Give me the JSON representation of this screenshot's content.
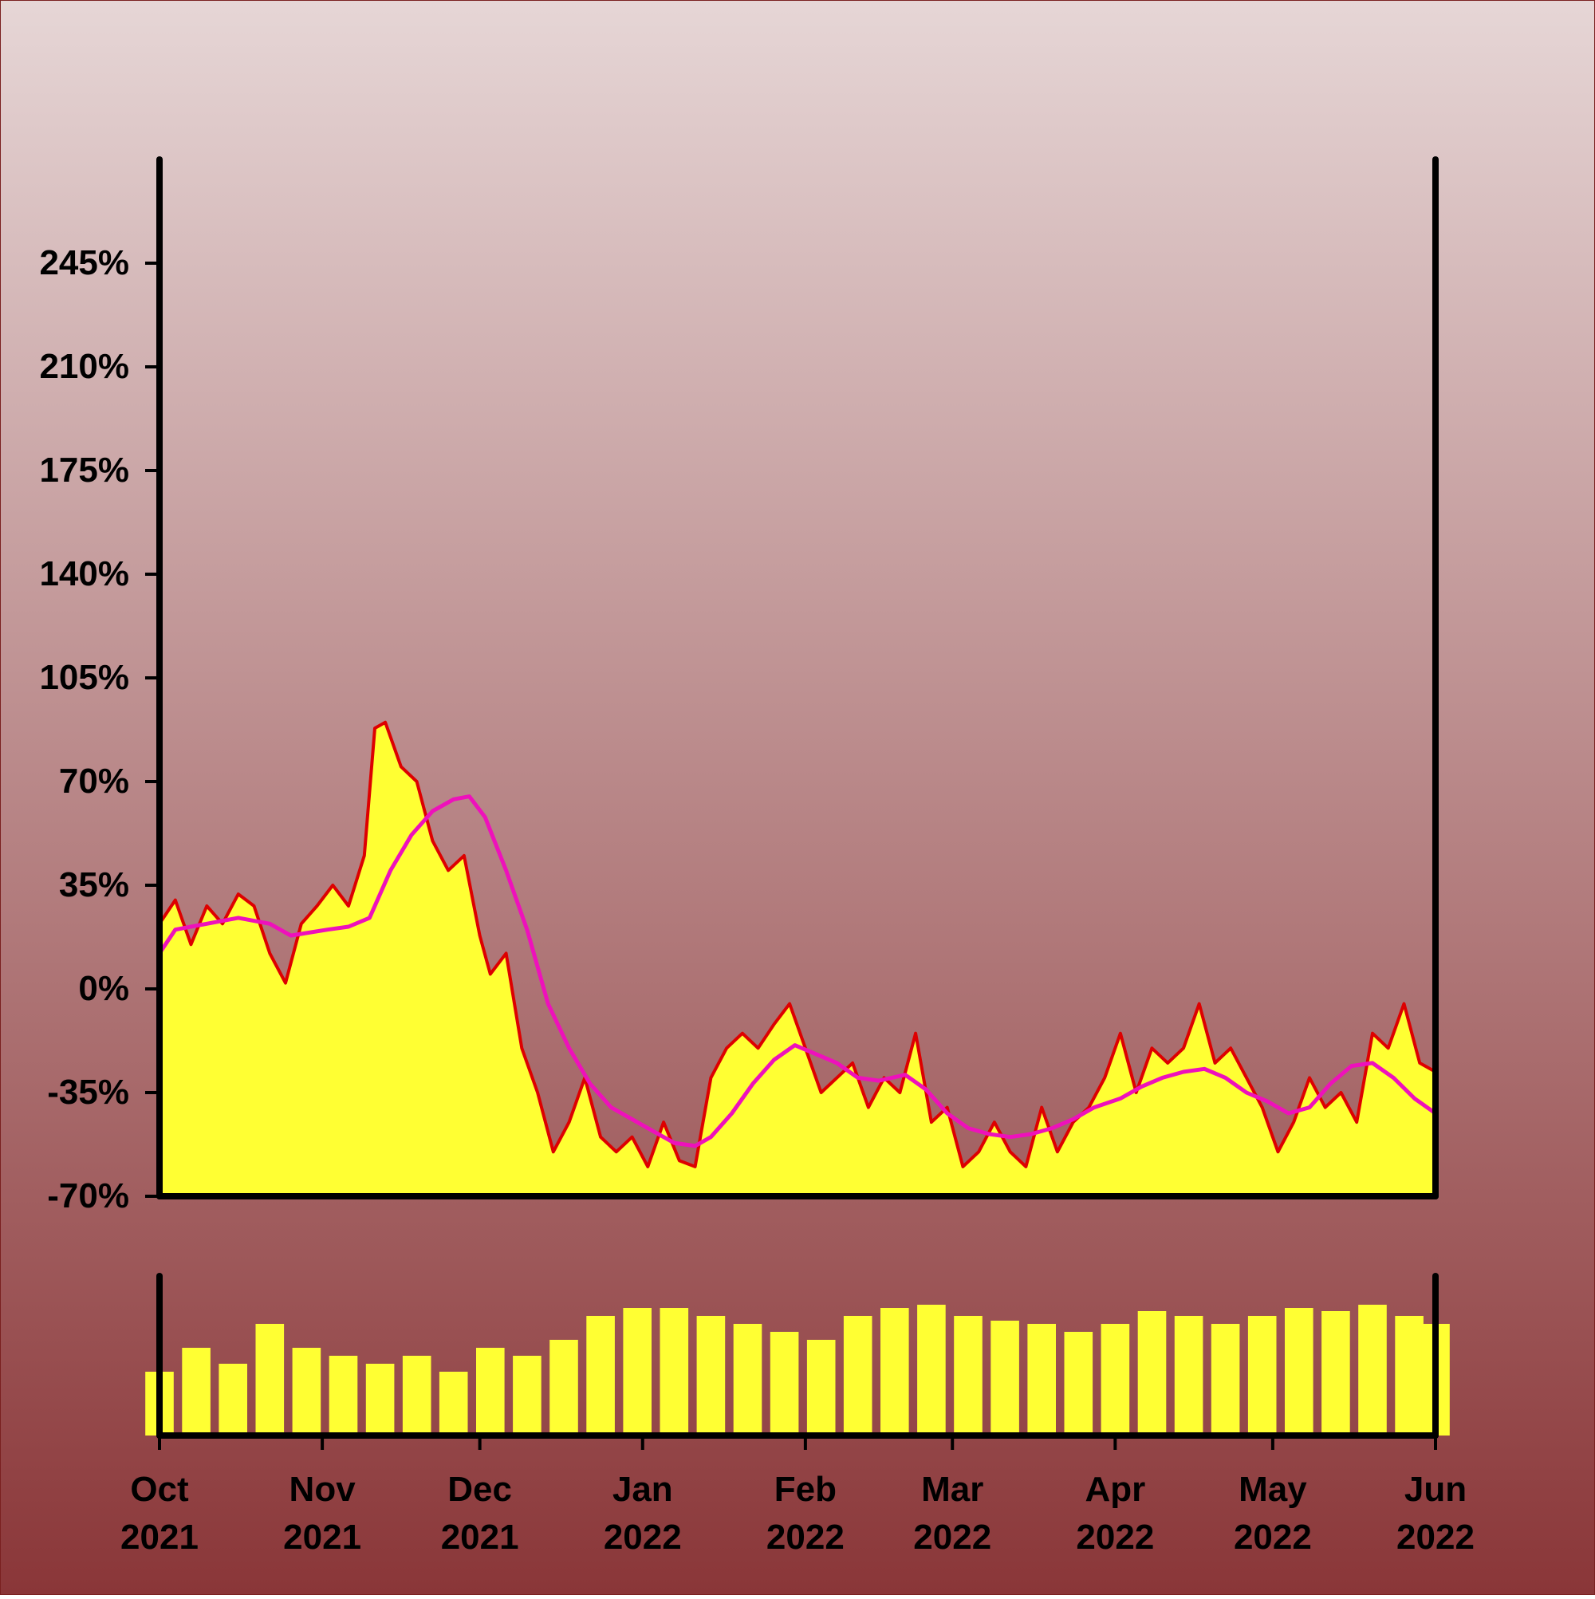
{
  "colors": {
    "background_top": "#e6d6d6",
    "background_bottom": "#8a3638",
    "area_fill": "#ffff33",
    "price_line": "#dd0000",
    "moving_average": "#ee11bb",
    "volume_fill": "#ffff33",
    "axis": "#000000"
  },
  "chart_data": {
    "type": "area",
    "title": "",
    "xlabel": "",
    "ylabel": "",
    "y_unit": "%",
    "ylim": [
      -70,
      280
    ],
    "xlim": [
      "2021-10-01",
      "2022-06-01"
    ],
    "yticks": [
      -70,
      -35,
      0,
      35,
      70,
      105,
      140,
      175,
      210,
      245
    ],
    "y_tick_labels": [
      "-70%",
      "-35%",
      "0%",
      "35%",
      "70%",
      "105%",
      "140%",
      "175%",
      "210%",
      "245%"
    ],
    "x_ticks": [
      "2021-10-01",
      "2021-11-01",
      "2021-12-01",
      "2022-01-01",
      "2022-02-01",
      "2022-03-01",
      "2022-04-01",
      "2022-05-01",
      "2022-06-01"
    ],
    "x_tick_labels": [
      {
        "month": "Oct",
        "year": "2021"
      },
      {
        "month": "Nov",
        "year": "2021"
      },
      {
        "month": "Dec",
        "year": "2021"
      },
      {
        "month": "Jan",
        "year": "2022"
      },
      {
        "month": "Feb",
        "year": "2022"
      },
      {
        "month": "Mar",
        "year": "2022"
      },
      {
        "month": "Apr",
        "year": "2022"
      },
      {
        "month": "May",
        "year": "2022"
      },
      {
        "month": "Jun",
        "year": "2022"
      }
    ],
    "grid": false,
    "legend": "none",
    "series": [
      {
        "role": "price",
        "points": [
          [
            "2021-10-01",
            22
          ],
          [
            "2021-10-04",
            30
          ],
          [
            "2021-10-07",
            15
          ],
          [
            "2021-10-10",
            28
          ],
          [
            "2021-10-13",
            22
          ],
          [
            "2021-10-16",
            32
          ],
          [
            "2021-10-19",
            28
          ],
          [
            "2021-10-22",
            12
          ],
          [
            "2021-10-25",
            2
          ],
          [
            "2021-10-28",
            22
          ],
          [
            "2021-10-31",
            28
          ],
          [
            "2021-11-03",
            35
          ],
          [
            "2021-11-06",
            28
          ],
          [
            "2021-11-09",
            45
          ],
          [
            "2021-11-11",
            88
          ],
          [
            "2021-11-13",
            90
          ],
          [
            "2021-11-16",
            75
          ],
          [
            "2021-11-19",
            70
          ],
          [
            "2021-11-22",
            50
          ],
          [
            "2021-11-25",
            40
          ],
          [
            "2021-11-28",
            45
          ],
          [
            "2021-12-01",
            18
          ],
          [
            "2021-12-03",
            5
          ],
          [
            "2021-12-06",
            12
          ],
          [
            "2021-12-09",
            -20
          ],
          [
            "2021-12-12",
            -35
          ],
          [
            "2021-12-15",
            -55
          ],
          [
            "2021-12-18",
            -45
          ],
          [
            "2021-12-21",
            -30
          ],
          [
            "2021-12-24",
            -50
          ],
          [
            "2021-12-27",
            -55
          ],
          [
            "2021-12-30",
            -50
          ],
          [
            "2022-01-02",
            -60
          ],
          [
            "2022-01-05",
            -45
          ],
          [
            "2022-01-08",
            -58
          ],
          [
            "2022-01-11",
            -60
          ],
          [
            "2022-01-14",
            -30
          ],
          [
            "2022-01-17",
            -20
          ],
          [
            "2022-01-20",
            -15
          ],
          [
            "2022-01-23",
            -20
          ],
          [
            "2022-01-26",
            -12
          ],
          [
            "2022-01-29",
            -5
          ],
          [
            "2022-02-01",
            -20
          ],
          [
            "2022-02-04",
            -35
          ],
          [
            "2022-02-07",
            -30
          ],
          [
            "2022-02-10",
            -25
          ],
          [
            "2022-02-13",
            -40
          ],
          [
            "2022-02-16",
            -30
          ],
          [
            "2022-02-19",
            -35
          ],
          [
            "2022-02-22",
            -15
          ],
          [
            "2022-02-25",
            -45
          ],
          [
            "2022-02-28",
            -40
          ],
          [
            "2022-03-03",
            -60
          ],
          [
            "2022-03-06",
            -55
          ],
          [
            "2022-03-09",
            -45
          ],
          [
            "2022-03-12",
            -55
          ],
          [
            "2022-03-15",
            -60
          ],
          [
            "2022-03-18",
            -40
          ],
          [
            "2022-03-21",
            -55
          ],
          [
            "2022-03-24",
            -45
          ],
          [
            "2022-03-27",
            -40
          ],
          [
            "2022-03-30",
            -30
          ],
          [
            "2022-04-02",
            -15
          ],
          [
            "2022-04-05",
            -35
          ],
          [
            "2022-04-08",
            -20
          ],
          [
            "2022-04-11",
            -25
          ],
          [
            "2022-04-14",
            -20
          ],
          [
            "2022-04-17",
            -5
          ],
          [
            "2022-04-20",
            -25
          ],
          [
            "2022-04-23",
            -20
          ],
          [
            "2022-04-26",
            -30
          ],
          [
            "2022-04-29",
            -40
          ],
          [
            "2022-05-02",
            -55
          ],
          [
            "2022-05-05",
            -45
          ],
          [
            "2022-05-08",
            -30
          ],
          [
            "2022-05-11",
            -40
          ],
          [
            "2022-05-14",
            -35
          ],
          [
            "2022-05-17",
            -45
          ],
          [
            "2022-05-20",
            -15
          ],
          [
            "2022-05-23",
            -20
          ],
          [
            "2022-05-26",
            -5
          ],
          [
            "2022-05-29",
            -25
          ],
          [
            "2022-06-01",
            -28
          ]
        ]
      },
      {
        "role": "moving_average",
        "points": [
          [
            "2021-10-01",
            12
          ],
          [
            "2021-10-04",
            20
          ],
          [
            "2021-10-10",
            22
          ],
          [
            "2021-10-16",
            24
          ],
          [
            "2021-10-22",
            22
          ],
          [
            "2021-10-26",
            18
          ],
          [
            "2021-11-02",
            20
          ],
          [
            "2021-11-06",
            21
          ],
          [
            "2021-11-10",
            24
          ],
          [
            "2021-11-14",
            40
          ],
          [
            "2021-11-18",
            52
          ],
          [
            "2021-11-22",
            60
          ],
          [
            "2021-11-26",
            64
          ],
          [
            "2021-11-29",
            65
          ],
          [
            "2021-12-02",
            58
          ],
          [
            "2021-12-06",
            40
          ],
          [
            "2021-12-10",
            20
          ],
          [
            "2021-12-14",
            -5
          ],
          [
            "2021-12-18",
            -20
          ],
          [
            "2021-12-22",
            -32
          ],
          [
            "2021-12-26",
            -40
          ],
          [
            "2021-12-30",
            -44
          ],
          [
            "2022-01-03",
            -48
          ],
          [
            "2022-01-07",
            -52
          ],
          [
            "2022-01-11",
            -53
          ],
          [
            "2022-01-14",
            -50
          ],
          [
            "2022-01-18",
            -42
          ],
          [
            "2022-01-22",
            -32
          ],
          [
            "2022-01-26",
            -24
          ],
          [
            "2022-01-30",
            -19
          ],
          [
            "2022-02-03",
            -22
          ],
          [
            "2022-02-07",
            -25
          ],
          [
            "2022-02-11",
            -30
          ],
          [
            "2022-02-15",
            -31
          ],
          [
            "2022-02-20",
            -29
          ],
          [
            "2022-02-24",
            -34
          ],
          [
            "2022-02-28",
            -42
          ],
          [
            "2022-03-04",
            -47
          ],
          [
            "2022-03-08",
            -49
          ],
          [
            "2022-03-12",
            -50
          ],
          [
            "2022-03-16",
            -49
          ],
          [
            "2022-03-20",
            -47
          ],
          [
            "2022-03-24",
            -44
          ],
          [
            "2022-03-28",
            -40
          ],
          [
            "2022-04-02",
            -37
          ],
          [
            "2022-04-06",
            -33
          ],
          [
            "2022-04-10",
            -30
          ],
          [
            "2022-04-14",
            -28
          ],
          [
            "2022-04-18",
            -27
          ],
          [
            "2022-04-22",
            -30
          ],
          [
            "2022-04-26",
            -35
          ],
          [
            "2022-04-30",
            -38
          ],
          [
            "2022-05-04",
            -42
          ],
          [
            "2022-05-08",
            -40
          ],
          [
            "2022-05-12",
            -32
          ],
          [
            "2022-05-16",
            -26
          ],
          [
            "2022-05-20",
            -25
          ],
          [
            "2022-05-24",
            -30
          ],
          [
            "2022-05-28",
            -37
          ],
          [
            "2022-06-01",
            -42
          ]
        ]
      }
    ],
    "volume": {
      "type": "bar",
      "note_unit": "relative",
      "points": [
        [
          "2021-10-01",
          0.4
        ],
        [
          "2021-10-08",
          0.55
        ],
        [
          "2021-10-15",
          0.45
        ],
        [
          "2021-10-22",
          0.7
        ],
        [
          "2021-10-29",
          0.55
        ],
        [
          "2021-11-05",
          0.5
        ],
        [
          "2021-11-12",
          0.45
        ],
        [
          "2021-11-19",
          0.5
        ],
        [
          "2021-11-26",
          0.4
        ],
        [
          "2021-12-03",
          0.55
        ],
        [
          "2021-12-10",
          0.5
        ],
        [
          "2021-12-17",
          0.6
        ],
        [
          "2021-12-24",
          0.75
        ],
        [
          "2021-12-31",
          0.8
        ],
        [
          "2022-01-07",
          0.8
        ],
        [
          "2022-01-14",
          0.75
        ],
        [
          "2022-01-21",
          0.7
        ],
        [
          "2022-01-28",
          0.65
        ],
        [
          "2022-02-04",
          0.6
        ],
        [
          "2022-02-11",
          0.75
        ],
        [
          "2022-02-18",
          0.8
        ],
        [
          "2022-02-25",
          0.82
        ],
        [
          "2022-03-04",
          0.75
        ],
        [
          "2022-03-11",
          0.72
        ],
        [
          "2022-03-18",
          0.7
        ],
        [
          "2022-03-25",
          0.65
        ],
        [
          "2022-04-01",
          0.7
        ],
        [
          "2022-04-08",
          0.78
        ],
        [
          "2022-04-15",
          0.75
        ],
        [
          "2022-04-22",
          0.7
        ],
        [
          "2022-04-29",
          0.75
        ],
        [
          "2022-05-06",
          0.8
        ],
        [
          "2022-05-13",
          0.78
        ],
        [
          "2022-05-20",
          0.82
        ],
        [
          "2022-05-27",
          0.75
        ],
        [
          "2022-06-01",
          0.7
        ]
      ]
    }
  }
}
